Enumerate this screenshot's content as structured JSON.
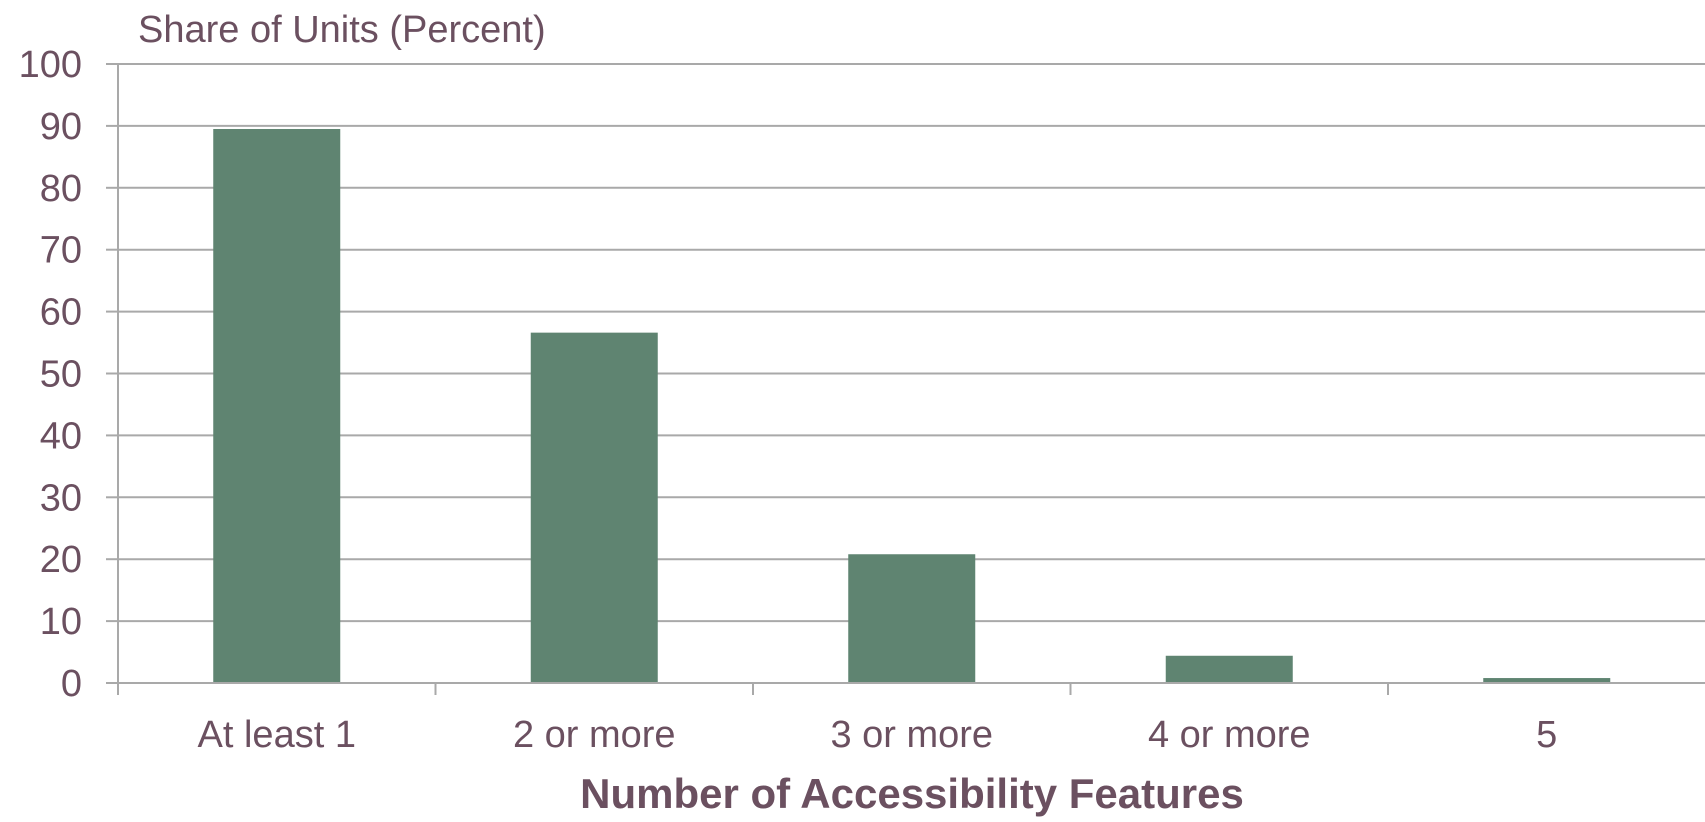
{
  "chart_data": {
    "type": "bar",
    "title": "",
    "ylabel": "Share of Units (Percent)",
    "xlabel": "Number of Accessibility Features",
    "categories": [
      "At least 1",
      "2 or more",
      "3 or more",
      "4 or more",
      "5"
    ],
    "values": [
      89.5,
      56.6,
      20.8,
      4.4,
      0.8
    ],
    "ylim": [
      0,
      100
    ],
    "yticks": [
      "0",
      "10",
      "20",
      "30",
      "40",
      "50",
      "60",
      "70",
      "80",
      "90",
      "100"
    ],
    "grid": true,
    "legend": "none",
    "colors": {
      "bar": "#5f8471",
      "grid": "#a9a9a9",
      "text": "#6b5060"
    }
  }
}
